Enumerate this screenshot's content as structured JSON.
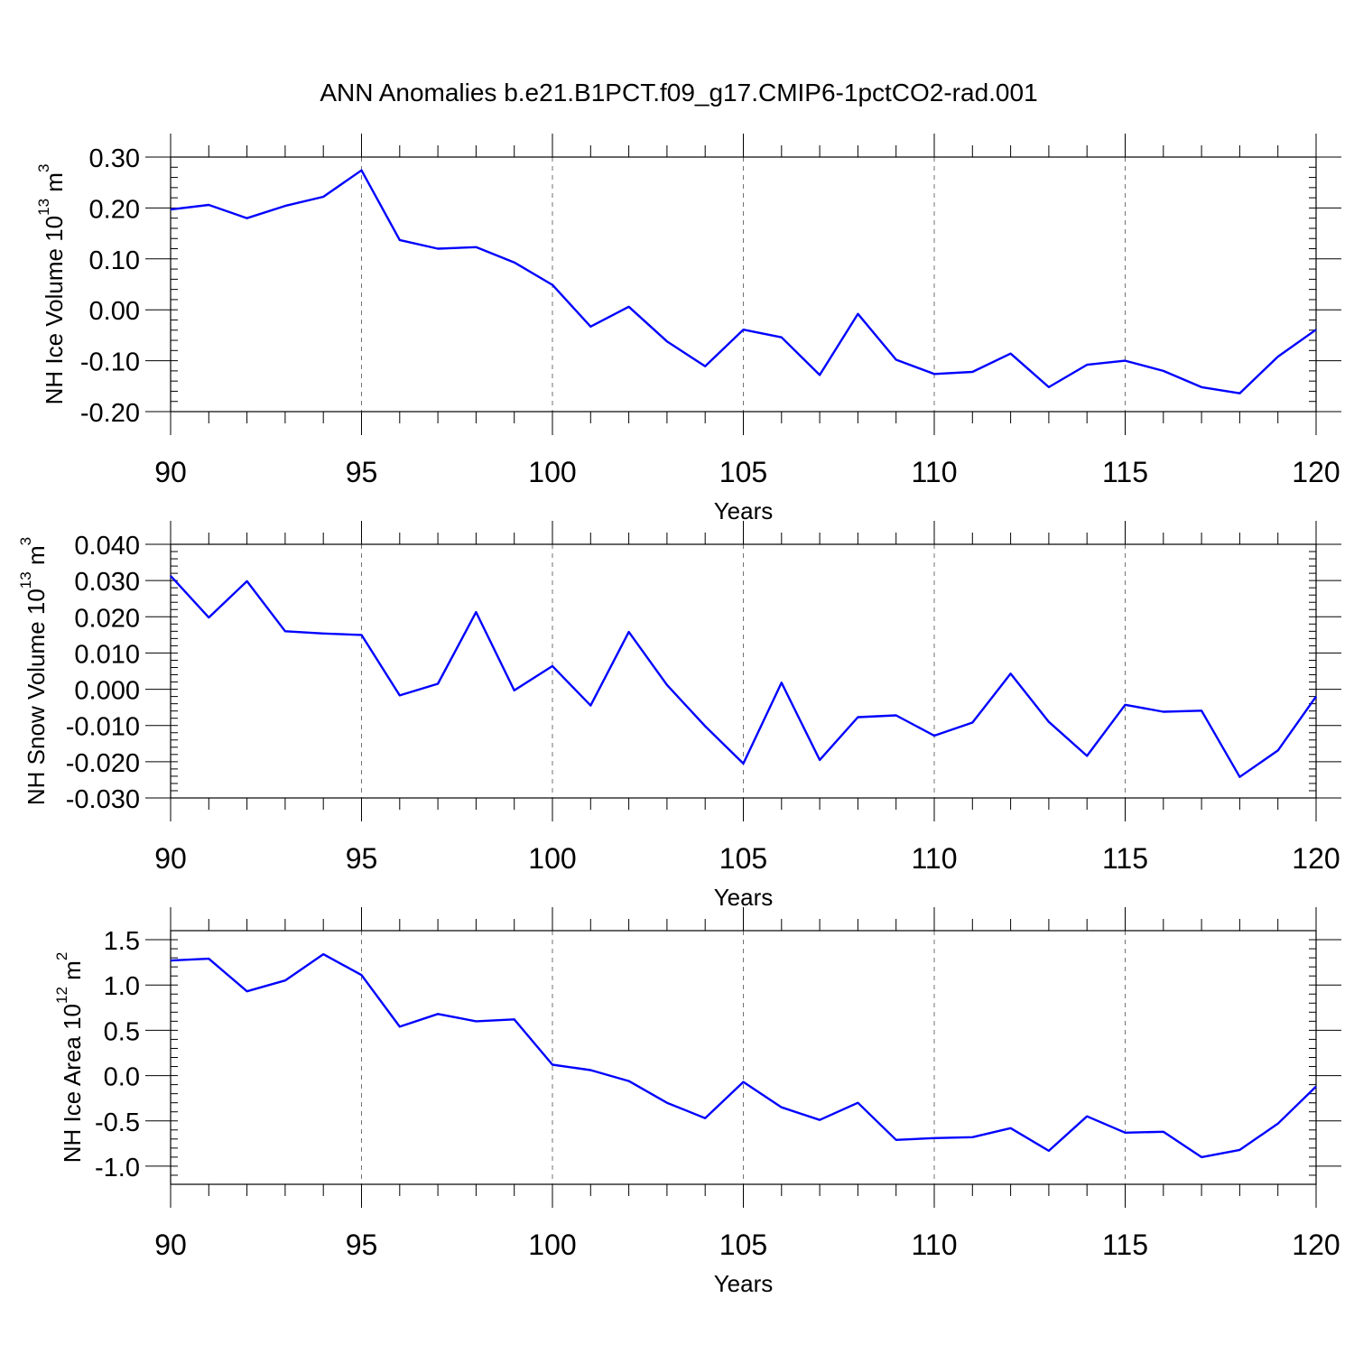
{
  "title": "ANN Anomalies b.e21.B1PCT.f09_g17.CMIP6-1pctCO2-rad.001",
  "colors": {
    "line": "#0000ff",
    "axis": "#000000",
    "grid": "#808080"
  },
  "chart_data": [
    {
      "type": "line",
      "ylabel": "NH Ice Volume 10",
      "ylabel_exp": "13",
      "ylabel_unit": " m",
      "ylabel_unit_exp": "3",
      "xlabel": "Years",
      "xlim": [
        90,
        120
      ],
      "ylim": [
        -0.2,
        0.3
      ],
      "y_ticks": [
        -0.2,
        -0.1,
        0.0,
        0.1,
        0.2,
        0.3
      ],
      "y_tick_labels": [
        "-0.20",
        "-0.10",
        "0.00",
        "0.10",
        "0.20",
        "0.30"
      ],
      "x_ticks": [
        90,
        95,
        100,
        105,
        110,
        115,
        120
      ],
      "x_tick_labels": [
        "90",
        "95",
        "100",
        "105",
        "110",
        "115",
        "120"
      ],
      "grid_x": [
        95,
        100,
        105,
        110,
        115
      ],
      "series": [
        {
          "name": "NH Ice Volume",
          "x": [
            90,
            91,
            92,
            93,
            94,
            95,
            96,
            97,
            98,
            99,
            100,
            101,
            102,
            103,
            104,
            105,
            106,
            107,
            108,
            109,
            110,
            111,
            112,
            113,
            114,
            115,
            116,
            117,
            118,
            119,
            120
          ],
          "values": [
            0.197,
            0.206,
            0.18,
            0.204,
            0.222,
            0.274,
            0.137,
            0.12,
            0.123,
            0.093,
            0.049,
            -0.033,
            0.006,
            -0.062,
            -0.111,
            -0.039,
            -0.054,
            -0.128,
            -0.008,
            -0.098,
            -0.126,
            -0.122,
            -0.086,
            -0.152,
            -0.108,
            -0.1,
            -0.12,
            -0.152,
            -0.164,
            -0.092,
            -0.039
          ]
        }
      ]
    },
    {
      "type": "line",
      "ylabel": "NH Snow Volume 10",
      "ylabel_exp": "13",
      "ylabel_unit": " m",
      "ylabel_unit_exp": "3",
      "xlabel": "Years",
      "xlim": [
        90,
        120
      ],
      "ylim": [
        -0.03,
        0.04
      ],
      "y_ticks": [
        -0.03,
        -0.02,
        -0.01,
        0.0,
        0.01,
        0.02,
        0.03,
        0.04
      ],
      "y_tick_labels": [
        "-0.030",
        "-0.020",
        "-0.010",
        "0.000",
        "0.010",
        "0.020",
        "0.030",
        "0.040"
      ],
      "x_ticks": [
        90,
        95,
        100,
        105,
        110,
        115,
        120
      ],
      "x_tick_labels": [
        "90",
        "95",
        "100",
        "105",
        "110",
        "115",
        "120"
      ],
      "grid_x": [
        95,
        100,
        105,
        110,
        115
      ],
      "series": [
        {
          "name": "NH Snow Volume",
          "x": [
            90,
            91,
            92,
            93,
            94,
            95,
            96,
            97,
            98,
            99,
            100,
            101,
            102,
            103,
            104,
            105,
            106,
            107,
            108,
            109,
            110,
            111,
            112,
            113,
            114,
            115,
            116,
            117,
            118,
            119,
            120
          ],
          "values": [
            0.0313,
            0.0198,
            0.0298,
            0.016,
            0.0154,
            0.015,
            -0.0017,
            0.0015,
            0.0213,
            -0.0003,
            0.0064,
            -0.0045,
            0.0158,
            0.0012,
            -0.0102,
            -0.0205,
            0.0018,
            -0.0195,
            -0.0077,
            -0.0072,
            -0.0128,
            -0.0092,
            0.0043,
            -0.009,
            -0.0184,
            -0.0043,
            -0.0062,
            -0.0059,
            -0.0242,
            -0.0169,
            -0.002
          ]
        }
      ]
    },
    {
      "type": "line",
      "ylabel": "NH Ice Area 10",
      "ylabel_exp": "12",
      "ylabel_unit": " m",
      "ylabel_unit_exp": "2",
      "xlabel": "Years",
      "xlim": [
        90,
        120
      ],
      "ylim": [
        -1.2,
        1.6
      ],
      "y_ticks": [
        -1.0,
        -0.5,
        0.0,
        0.5,
        1.0,
        1.5
      ],
      "y_tick_labels": [
        "-1.0",
        "-0.5",
        "0.0",
        "0.5",
        "1.0",
        "1.5"
      ],
      "x_ticks": [
        90,
        95,
        100,
        105,
        110,
        115,
        120
      ],
      "x_tick_labels": [
        "90",
        "95",
        "100",
        "105",
        "110",
        "115",
        "120"
      ],
      "grid_x": [
        95,
        100,
        105,
        110,
        115
      ],
      "series": [
        {
          "name": "NH Ice Area",
          "x": [
            90,
            91,
            92,
            93,
            94,
            95,
            96,
            97,
            98,
            99,
            100,
            101,
            102,
            103,
            104,
            105,
            106,
            107,
            108,
            109,
            110,
            111,
            112,
            113,
            114,
            115,
            116,
            117,
            118,
            119,
            120
          ],
          "values": [
            1.27,
            1.29,
            0.93,
            1.05,
            1.34,
            1.11,
            0.54,
            0.68,
            0.6,
            0.62,
            0.12,
            0.06,
            -0.06,
            -0.3,
            -0.47,
            -0.07,
            -0.35,
            -0.49,
            -0.3,
            -0.71,
            -0.69,
            -0.68,
            -0.58,
            -0.83,
            -0.45,
            -0.63,
            -0.62,
            -0.9,
            -0.82,
            -0.53,
            -0.12
          ]
        }
      ]
    }
  ]
}
